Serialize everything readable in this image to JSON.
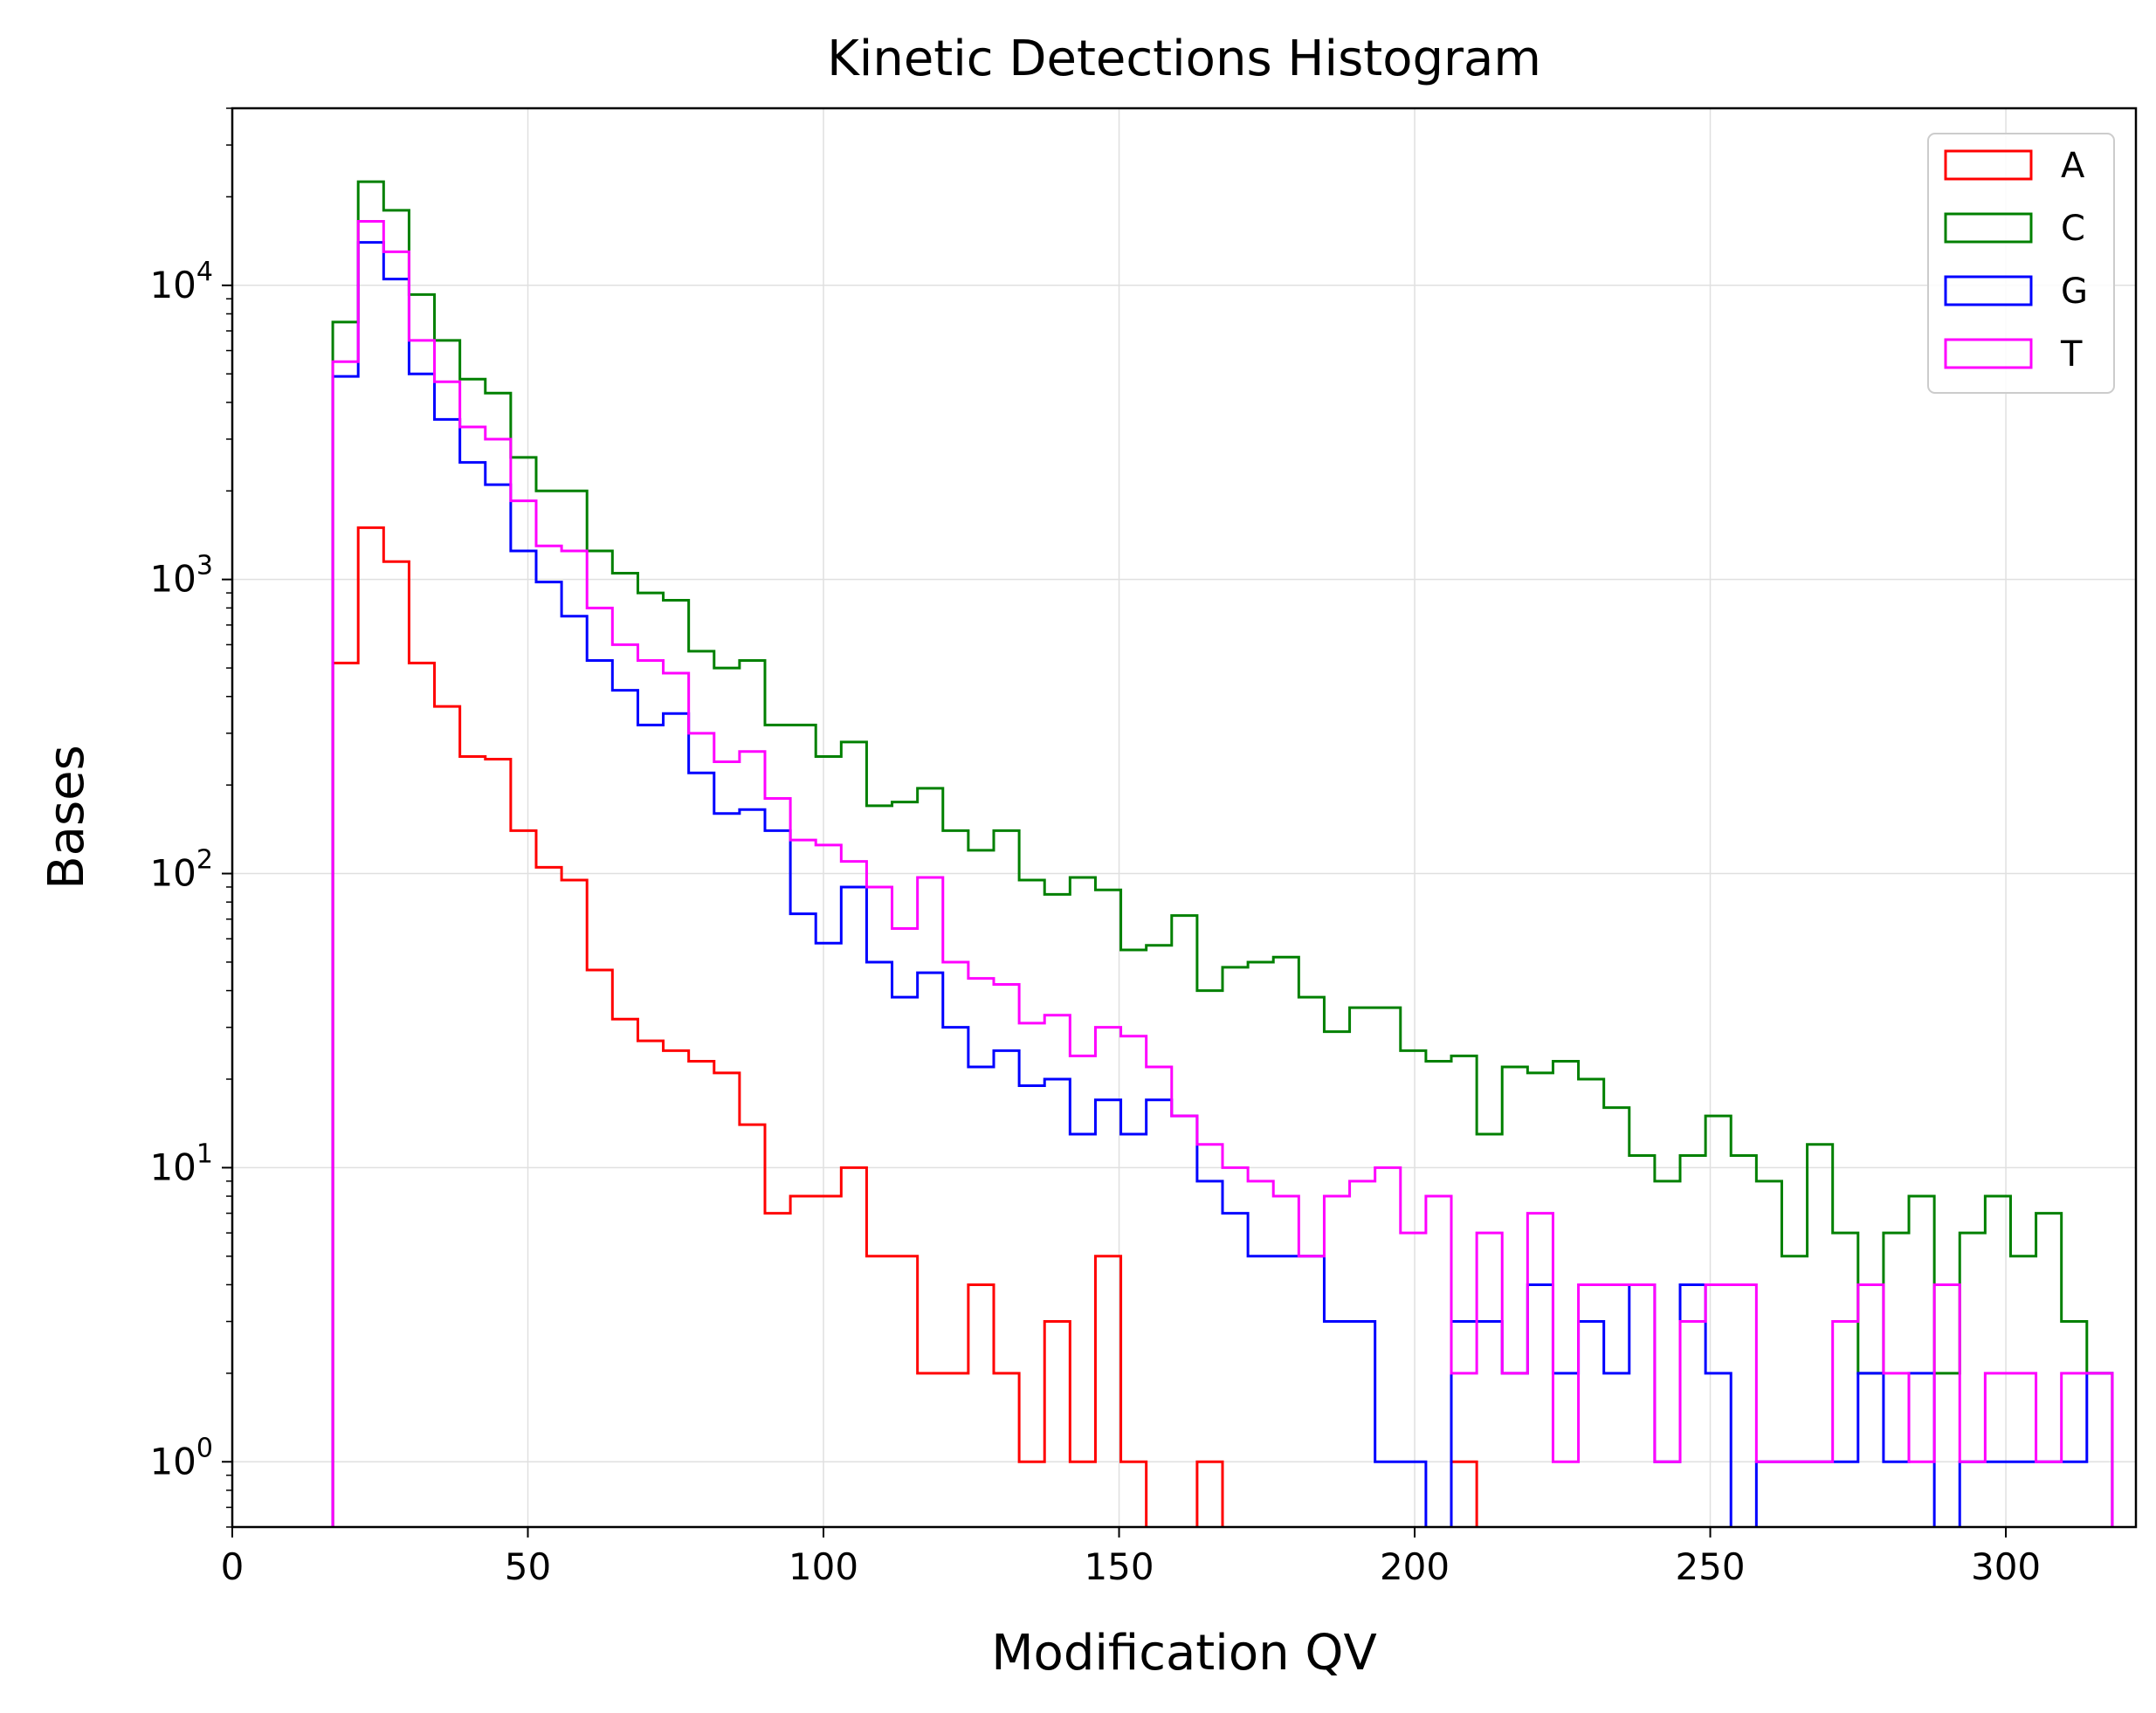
{
  "chart_data": {
    "type": "histogram-step",
    "title": "Kinetic Detections Histogram",
    "xlabel": "Modification QV",
    "ylabel": "Bases",
    "xlim": [
      0,
      322
    ],
    "ylim": [
      0.6,
      40000
    ],
    "yscale": "log",
    "grid": true,
    "legend_position": "top-right",
    "x_ticks": [
      0,
      50,
      100,
      150,
      200,
      250,
      300
    ],
    "x_tick_labels": [
      "0",
      "50",
      "100",
      "150",
      "200",
      "250",
      "300"
    ],
    "y_ticks": [
      1,
      10,
      100,
      1000,
      10000
    ],
    "y_tick_labels": [
      {
        "base": "10",
        "exp": "0"
      },
      {
        "base": "10",
        "exp": "1"
      },
      {
        "base": "10",
        "exp": "2"
      },
      {
        "base": "10",
        "exp": "3"
      },
      {
        "base": "10",
        "exp": "4"
      }
    ],
    "bin_start": 17,
    "bin_width": 4.3,
    "series": [
      {
        "name": "A",
        "color": "#ff0000",
        "values": [
          520,
          1500,
          1150,
          520,
          370,
          250,
          245,
          140,
          105,
          95,
          47,
          32,
          27,
          25,
          23,
          21,
          14,
          7,
          8,
          8,
          10,
          5,
          5,
          2,
          2,
          4,
          2,
          1,
          3,
          1,
          5,
          1,
          0,
          0,
          1,
          0,
          0,
          0,
          0,
          0,
          0,
          0,
          0,
          0,
          1,
          0,
          0,
          0,
          0,
          0,
          0,
          0,
          0,
          0,
          0,
          0,
          0,
          0,
          0,
          0,
          0,
          0,
          0,
          0,
          0,
          0,
          0,
          0,
          0,
          0
        ]
      },
      {
        "name": "C",
        "color": "#008000",
        "values": [
          7500,
          22500,
          18000,
          9300,
          6500,
          4800,
          4300,
          2600,
          2000,
          2000,
          1250,
          1050,
          900,
          850,
          570,
          500,
          530,
          320,
          320,
          250,
          280,
          170,
          175,
          195,
          140,
          120,
          140,
          95,
          85,
          97,
          88,
          55,
          57,
          72,
          40,
          48,
          50,
          52,
          38,
          29,
          35,
          35,
          25,
          23,
          24,
          13,
          22,
          21,
          23,
          20,
          16,
          11,
          9,
          11,
          15,
          11,
          9,
          5,
          12,
          6,
          2,
          6,
          8,
          2,
          6,
          8,
          5,
          7,
          3,
          2
        ]
      },
      {
        "name": "G",
        "color": "#0000ff",
        "values": [
          4900,
          14000,
          10500,
          5000,
          3500,
          2500,
          2100,
          1250,
          980,
          750,
          530,
          420,
          320,
          350,
          220,
          160,
          165,
          140,
          73,
          58,
          90,
          50,
          38,
          46,
          30,
          22,
          25,
          19,
          20,
          13,
          17,
          13,
          17,
          15,
          9,
          7,
          5,
          5,
          5,
          3,
          3,
          1,
          1,
          0,
          3,
          3,
          2,
          4,
          2,
          3,
          2,
          4,
          1,
          4,
          2,
          0,
          1,
          1,
          1,
          1,
          2,
          1,
          2,
          0,
          1,
          1,
          1,
          1,
          1,
          2
        ]
      },
      {
        "name": "T",
        "color": "#ff00ff",
        "values": [
          5500,
          16500,
          13000,
          6500,
          4700,
          3300,
          3000,
          1850,
          1300,
          1250,
          800,
          600,
          530,
          480,
          300,
          240,
          260,
          180,
          130,
          125,
          110,
          90,
          65,
          97,
          50,
          44,
          42,
          31,
          33,
          24,
          30,
          28,
          22,
          15,
          12,
          10,
          9,
          8,
          5,
          8,
          9,
          10,
          6,
          8,
          2,
          6,
          2,
          7,
          1,
          4,
          4,
          4,
          1,
          3,
          4,
          4,
          1,
          1,
          1,
          3,
          4,
          2,
          1,
          4,
          1,
          2,
          2,
          1,
          2,
          2
        ]
      }
    ]
  }
}
